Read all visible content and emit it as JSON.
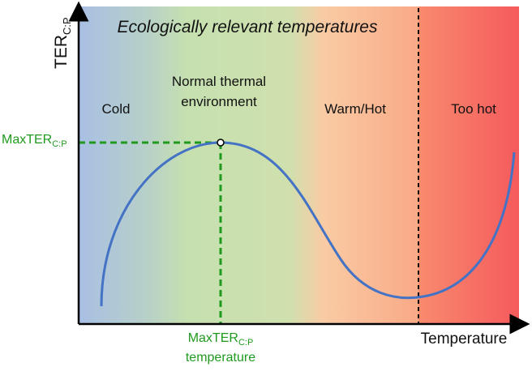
{
  "title": "Ecologically relevant temperatures",
  "y_axis": {
    "label": "TER",
    "subscript": "C:P"
  },
  "x_axis": {
    "label": "Temperature"
  },
  "zones": {
    "cold": "Cold",
    "normal": [
      "Normal thermal",
      "environment"
    ],
    "warm": "Warm/Hot",
    "too_hot": "Too hot"
  },
  "max_marker": {
    "y_label": "MaxTER",
    "y_subscript": "C:P",
    "x_label": "MaxTER",
    "x_subscript": "C:P",
    "x_label_line2": "temperature"
  }
}
